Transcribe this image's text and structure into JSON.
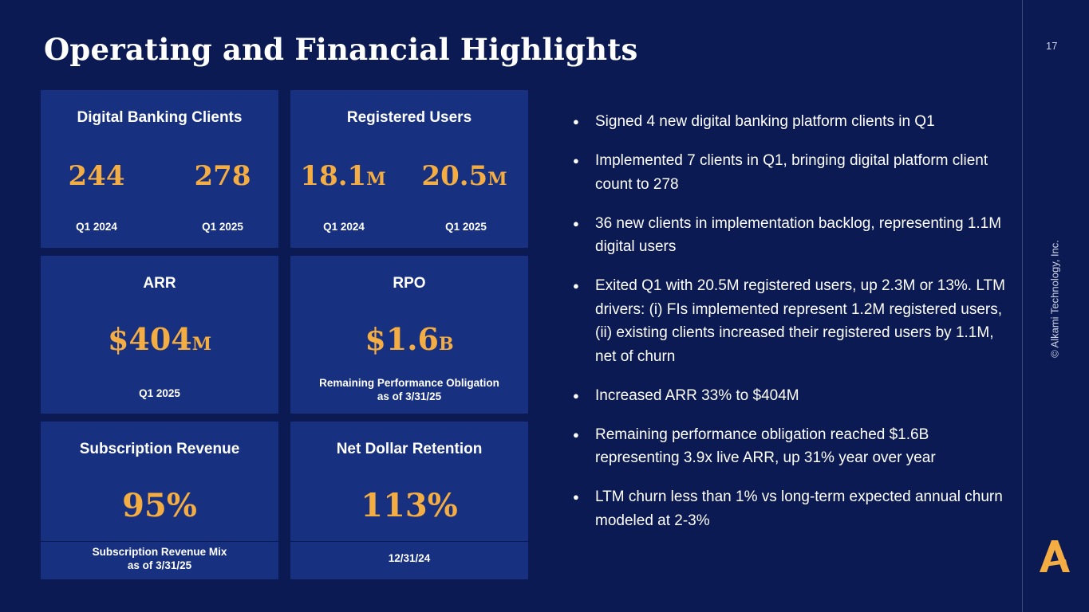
{
  "title": "Operating and Financial Highlights",
  "page_number": "17",
  "copyright": "© Alkami Technology, Inc.",
  "colors": {
    "background": "#0b1a52",
    "card": "#183080",
    "accent": "#f3ad42",
    "text": "#ffffff"
  },
  "cards": {
    "digital_banking_clients": {
      "title": "Digital Banking Clients",
      "left": {
        "value": "244",
        "label": "Q1 2024"
      },
      "right": {
        "value": "278",
        "label": "Q1 2025"
      }
    },
    "registered_users": {
      "title": "Registered Users",
      "left": {
        "value": "18.1",
        "unit": "M",
        "label": "Q1 2024"
      },
      "right": {
        "value": "20.5",
        "unit": "M",
        "label": "Q1 2025"
      }
    },
    "arr": {
      "title": "ARR",
      "value": "$404",
      "unit": "M",
      "caption": "Q1 2025"
    },
    "rpo": {
      "title": "RPO",
      "value": "$1.6",
      "unit": "B",
      "caption_line1": "Remaining Performance Obligation",
      "caption_line2": "as of 3/31/25"
    },
    "subscription_revenue": {
      "title": "Subscription Revenue",
      "value": "95%",
      "caption_line1": "Subscription Revenue Mix",
      "caption_line2": "as of 3/31/25"
    },
    "net_dollar_retention": {
      "title": "Net Dollar Retention",
      "value": "113%",
      "caption": "12/31/24"
    }
  },
  "bullet_glyph": "●",
  "bullets": [
    "Signed 4 new digital banking platform clients in Q1",
    "Implemented 7 clients in Q1, bringing digital platform client count to 278",
    "36 new clients in implementation backlog, representing 1.1M digital users",
    "Exited Q1 with 20.5M registered users, up 2.3M or 13%. LTM drivers: (i) FIs implemented represent 1.2M registered users, (ii) existing clients increased their registered users by 1.1M, net of churn",
    "Increased ARR 33% to $404M",
    "Remaining performance obligation reached $1.6B representing 3.9x live ARR, up 31% year over year",
    "LTM churn less than 1% vs long-term expected annual churn modeled at 2-3%"
  ],
  "logo_icon": "alkami-logo-icon"
}
